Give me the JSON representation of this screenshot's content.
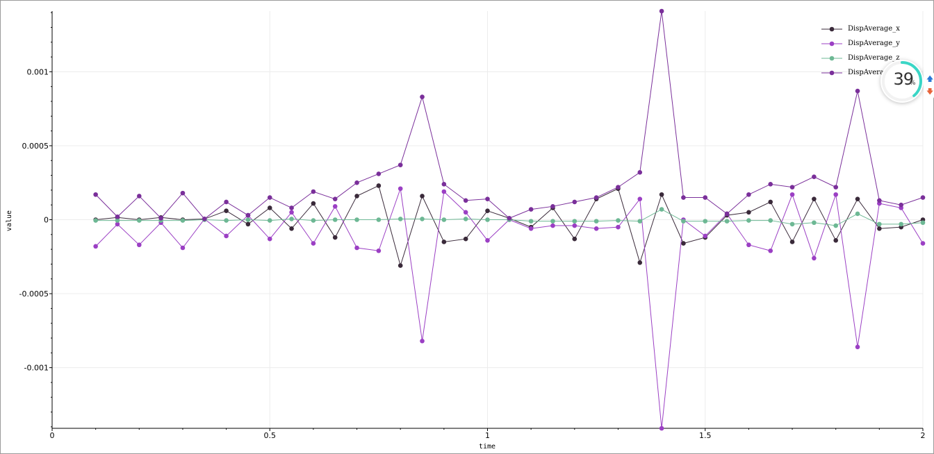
{
  "chart_data": {
    "type": "line",
    "xlabel": "time",
    "ylabel": "value",
    "xlim": [
      0,
      2
    ],
    "ylim": [
      -0.00141,
      0.00141
    ],
    "grid": true,
    "legend_position": "top-right",
    "x_ticks": [
      {
        "value": 0,
        "label": "0"
      },
      {
        "value": 0.5,
        "label": "0.5"
      },
      {
        "value": 1,
        "label": "1"
      },
      {
        "value": 1.5,
        "label": "1.5"
      },
      {
        "value": 2,
        "label": "2"
      }
    ],
    "y_ticks": [
      {
        "value": 0.001,
        "label": "0.001"
      },
      {
        "value": 0.0005,
        "label": "0.0005"
      },
      {
        "value": 0,
        "label": "0"
      },
      {
        "value": -0.0005,
        "label": "-0.0005"
      },
      {
        "value": -0.001,
        "label": "-0.001"
      }
    ],
    "x": [
      0.1,
      0.15,
      0.2,
      0.25,
      0.3,
      0.35,
      0.4,
      0.45,
      0.5,
      0.55,
      0.6,
      0.65,
      0.7,
      0.75,
      0.8,
      0.85,
      0.9,
      0.95,
      1.0,
      1.05,
      1.1,
      1.15,
      1.2,
      1.25,
      1.3,
      1.35,
      1.4,
      1.45,
      1.5,
      1.55,
      1.6,
      1.65,
      1.7,
      1.75,
      1.8,
      1.85,
      1.9,
      1.95,
      2.0
    ],
    "series": [
      {
        "name": "DispAverage_x",
        "color": "#3a2a3a",
        "values": [
          0.0,
          1.5e-05,
          0.0,
          1.5e-05,
          0.0,
          5e-06,
          6e-05,
          -3e-05,
          8e-05,
          -6e-05,
          0.00011,
          -0.00012,
          0.00016,
          0.00023,
          -0.00031,
          0.00016,
          -0.00015,
          -0.00013,
          6e-05,
          1e-05,
          -5e-05,
          8e-05,
          -0.00013,
          0.00014,
          0.00021,
          -0.00029,
          0.00017,
          -0.00016,
          -0.00012,
          3e-05,
          5e-05,
          0.00012,
          -0.00015,
          0.00014,
          -0.00014,
          0.00014,
          -6e-05,
          -5e-05,
          0.0
        ]
      },
      {
        "name": "DispAverage_y",
        "color": "#9b3fc4",
        "values": [
          -0.00018,
          -3e-05,
          -0.00017,
          -2e-05,
          -0.00019,
          5e-06,
          -0.00011,
          3e-05,
          -0.00013,
          5e-05,
          -0.00016,
          9e-05,
          -0.00019,
          -0.00021,
          0.00021,
          -0.00082,
          0.00019,
          5e-05,
          -0.00014,
          0.0,
          -6e-05,
          -4e-05,
          -4e-05,
          -6e-05,
          -5e-05,
          0.00014,
          -0.00141,
          0.0,
          -0.00011,
          4e-05,
          -0.00017,
          -0.00021,
          0.00017,
          -0.00026,
          0.00017,
          -0.00086,
          0.00011,
          8e-05,
          -0.00016
        ]
      },
      {
        "name": "DispAverage_z",
        "color": "#6db894",
        "values": [
          -5e-06,
          -5e-06,
          -5e-06,
          -5e-06,
          -5e-06,
          0.0,
          -5e-06,
          0.0,
          -5e-06,
          5e-06,
          -5e-06,
          0.0,
          0.0,
          0.0,
          5e-06,
          5e-06,
          0.0,
          5e-06,
          0.0,
          0.0,
          -1e-05,
          -1e-05,
          -1e-05,
          -1e-05,
          -5e-06,
          -1e-05,
          7e-05,
          -1e-05,
          -1e-05,
          -1e-05,
          -5e-06,
          -5e-06,
          -3e-05,
          -2e-05,
          -4e-05,
          4e-05,
          -3e-05,
          -3e-05,
          -2e-05
        ]
      },
      {
        "name": "DispAverage",
        "color": "#7a2f9a",
        "values": [
          0.00017,
          2e-05,
          0.00016,
          1e-05,
          0.00018,
          5e-06,
          0.00012,
          3e-05,
          0.00015,
          8e-05,
          0.00019,
          0.00014,
          0.00025,
          0.00031,
          0.00037,
          0.00083,
          0.00024,
          0.00013,
          0.00014,
          1e-05,
          7e-05,
          9e-05,
          0.00012,
          0.00015,
          0.00022,
          0.00032,
          0.00141,
          0.00015,
          0.00015,
          4e-05,
          0.00017,
          0.00024,
          0.00022,
          0.00029,
          0.00022,
          0.00087,
          0.00013,
          0.0001,
          0.00015
        ]
      }
    ],
    "legend_labels": [
      "DispAverage_x",
      "DispAverage_y",
      "DispAverage_z",
      "DispAverage"
    ]
  },
  "monitor_widget": {
    "value": "39",
    "unit": "%",
    "percent": 39,
    "ring_color": "#3ad6c6",
    "up_icon": "up-arrow-icon",
    "down_icon": "down-arrow-icon",
    "up_color": "#2a78d8",
    "down_color": "#e8643a"
  }
}
